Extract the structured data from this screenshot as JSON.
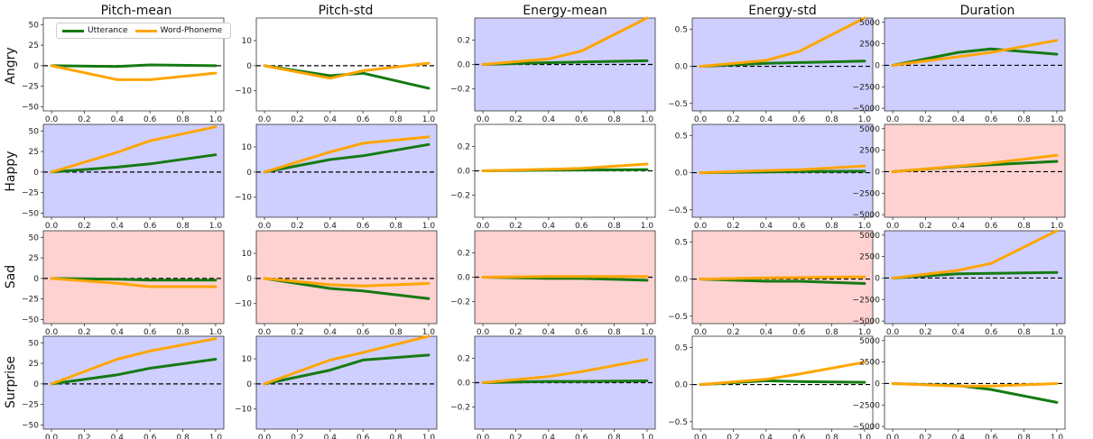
{
  "column_titles": [
    "Pitch-mean",
    "Pitch-std",
    "Energy-mean",
    "Energy-std",
    "Duration"
  ],
  "row_labels": [
    "Angry",
    "Happy",
    "Sad",
    "Surprise"
  ],
  "legend": {
    "entries": [
      {
        "label": "Utterance",
        "color": "#157a12"
      },
      {
        "label": "Word-Phoneme",
        "color": "#ffa500"
      }
    ],
    "placement": "upper-left (first panel)"
  },
  "colors": {
    "utterance": "#157a12",
    "word_phoneme": "#ffa500",
    "blue_bg": "#cfcfff",
    "red_bg": "#ffd2d2",
    "white_bg": "#ffffff",
    "zero_line": "#000000"
  },
  "chart_data": {
    "type": "line",
    "layout": "4x5 small multiples",
    "x_ticks": [
      0.0,
      0.2,
      0.4,
      0.6,
      0.8,
      1.0
    ],
    "x_tick_labels": [
      "0.0",
      "0.2",
      "0.4",
      "0.6",
      "0.8",
      "1.0"
    ],
    "xlim": [
      -0.05,
      1.05
    ],
    "x": [
      0.0,
      0.4,
      0.6,
      1.0
    ],
    "columns": [
      {
        "title": "Pitch-mean",
        "ylim": [
          -55,
          58
        ],
        "yticks": [
          -50,
          -25,
          0,
          25,
          50
        ],
        "ytick_labels": [
          "−50",
          "−25",
          "0",
          "25",
          "50"
        ]
      },
      {
        "title": "Pitch-std",
        "ylim": [
          -18,
          19
        ],
        "yticks": [
          -10,
          0,
          10
        ],
        "ytick_labels": [
          "−10",
          "0",
          "10"
        ]
      },
      {
        "title": "Energy-mean",
        "ylim": [
          -0.38,
          0.38
        ],
        "yticks": [
          -0.2,
          0.0,
          0.2
        ],
        "ytick_labels": [
          "−0.2",
          "0.0",
          "0.2"
        ]
      },
      {
        "title": "Energy-std",
        "ylim": [
          -0.6,
          0.65
        ],
        "yticks": [
          -0.5,
          0.0,
          0.5
        ],
        "ytick_labels": [
          "−0.5",
          "0.0",
          "0.5"
        ]
      },
      {
        "title": "Duration",
        "ylim": [
          -5300,
          5500
        ],
        "yticks": [
          -5000,
          -2500,
          0,
          2500,
          5000
        ],
        "ytick_labels": [
          "−5000",
          "−2500",
          "0",
          "2500",
          "5000"
        ]
      }
    ],
    "panels": [
      [
        {
          "bg": "white",
          "series": [
            {
              "name": "Utterance",
              "values": [
                0,
                -1,
                1,
                0
              ]
            },
            {
              "name": "Word-Phoneme",
              "values": [
                0,
                -17,
                -17,
                -9
              ]
            }
          ]
        },
        {
          "bg": "white",
          "series": [
            {
              "name": "Utterance",
              "values": [
                0,
                -4,
                -3,
                -9
              ]
            },
            {
              "name": "Word-Phoneme",
              "values": [
                0,
                -5,
                -2,
                1
              ]
            }
          ]
        },
        {
          "bg": "blue",
          "series": [
            {
              "name": "Utterance",
              "values": [
                0,
                0.015,
                0.02,
                0.03
              ]
            },
            {
              "name": "Word-Phoneme",
              "values": [
                0,
                0.045,
                0.11,
                0.38
              ]
            }
          ]
        },
        {
          "bg": "blue",
          "series": [
            {
              "name": "Utterance",
              "values": [
                0,
                0.04,
                0.05,
                0.07
              ]
            },
            {
              "name": "Word-Phoneme",
              "values": [
                0,
                0.08,
                0.2,
                0.65
              ]
            }
          ]
        },
        {
          "bg": "blue",
          "series": [
            {
              "name": "Utterance",
              "values": [
                0,
                1500,
                1900,
                1300
              ]
            },
            {
              "name": "Word-Phoneme",
              "values": [
                0,
                1000,
                1500,
                2900
              ]
            }
          ]
        }
      ],
      [
        {
          "bg": "blue",
          "series": [
            {
              "name": "Utterance",
              "values": [
                0,
                6,
                10,
                21
              ]
            },
            {
              "name": "Word-Phoneme",
              "values": [
                0,
                24,
                38,
                55
              ]
            }
          ]
        },
        {
          "bg": "blue",
          "series": [
            {
              "name": "Utterance",
              "values": [
                0,
                5,
                6.5,
                11
              ]
            },
            {
              "name": "Word-Phoneme",
              "values": [
                0,
                8,
                11.5,
                14
              ]
            }
          ]
        },
        {
          "bg": "white",
          "series": [
            {
              "name": "Utterance",
              "values": [
                0,
                0.005,
                0.007,
                0.01
              ]
            },
            {
              "name": "Word-Phoneme",
              "values": [
                0,
                0.013,
                0.02,
                0.055
              ]
            }
          ]
        },
        {
          "bg": "blue",
          "series": [
            {
              "name": "Utterance",
              "values": [
                0,
                0.01,
                0.015,
                0.02
              ]
            },
            {
              "name": "Word-Phoneme",
              "values": [
                0,
                0.03,
                0.04,
                0.09
              ]
            }
          ]
        },
        {
          "bg": "red",
          "series": [
            {
              "name": "Utterance",
              "values": [
                0,
                600,
                800,
                1200
              ]
            },
            {
              "name": "Word-Phoneme",
              "values": [
                0,
                650,
                1000,
                1900
              ]
            }
          ]
        }
      ],
      [
        {
          "bg": "red",
          "series": [
            {
              "name": "Utterance",
              "values": [
                0,
                -1,
                -2,
                -2
              ]
            },
            {
              "name": "Word-Phoneme",
              "values": [
                0,
                -6,
                -10,
                -10
              ]
            }
          ]
        },
        {
          "bg": "red",
          "series": [
            {
              "name": "Utterance",
              "values": [
                0,
                -4,
                -5,
                -8
              ]
            },
            {
              "name": "Word-Phoneme",
              "values": [
                0,
                -2.5,
                -3,
                -2
              ]
            }
          ]
        },
        {
          "bg": "red",
          "series": [
            {
              "name": "Utterance",
              "values": [
                0,
                -0.01,
                -0.01,
                -0.025
              ]
            },
            {
              "name": "Word-Phoneme",
              "values": [
                0,
                0.005,
                0.005,
                0.005
              ]
            }
          ]
        },
        {
          "bg": "red",
          "series": [
            {
              "name": "Utterance",
              "values": [
                0,
                -0.03,
                -0.03,
                -0.06
              ]
            },
            {
              "name": "Word-Phoneme",
              "values": [
                0,
                0.015,
                0.02,
                0.03
              ]
            }
          ]
        },
        {
          "bg": "blue",
          "series": [
            {
              "name": "Utterance",
              "values": [
                0,
                500,
                550,
                650
              ]
            },
            {
              "name": "Word-Phoneme",
              "values": [
                0,
                900,
                1700,
                5500
              ]
            }
          ]
        }
      ],
      [
        {
          "bg": "blue",
          "series": [
            {
              "name": "Utterance",
              "values": [
                0,
                11,
                19,
                30
              ]
            },
            {
              "name": "Word-Phoneme",
              "values": [
                0,
                30,
                40,
                55
              ]
            }
          ]
        },
        {
          "bg": "blue",
          "series": [
            {
              "name": "Utterance",
              "values": [
                0,
                5.5,
                9.5,
                11.5
              ]
            },
            {
              "name": "Word-Phoneme",
              "values": [
                0,
                9.5,
                12.5,
                19
              ]
            }
          ]
        },
        {
          "bg": "blue",
          "series": [
            {
              "name": "Utterance",
              "values": [
                0,
                0.01,
                0.01,
                0.015
              ]
            },
            {
              "name": "Word-Phoneme",
              "values": [
                0,
                0.05,
                0.09,
                0.19
              ]
            }
          ]
        },
        {
          "bg": "white",
          "series": [
            {
              "name": "Utterance",
              "values": [
                0,
                0.05,
                0.04,
                0.03
              ]
            },
            {
              "name": "Word-Phoneme",
              "values": [
                0,
                0.07,
                0.14,
                0.3
              ]
            }
          ]
        },
        {
          "bg": "white",
          "series": [
            {
              "name": "Utterance",
              "values": [
                0,
                -250,
                -700,
                -2200
              ]
            },
            {
              "name": "Word-Phoneme",
              "values": [
                0,
                -300,
                -300,
                0
              ]
            }
          ]
        }
      ]
    ]
  }
}
